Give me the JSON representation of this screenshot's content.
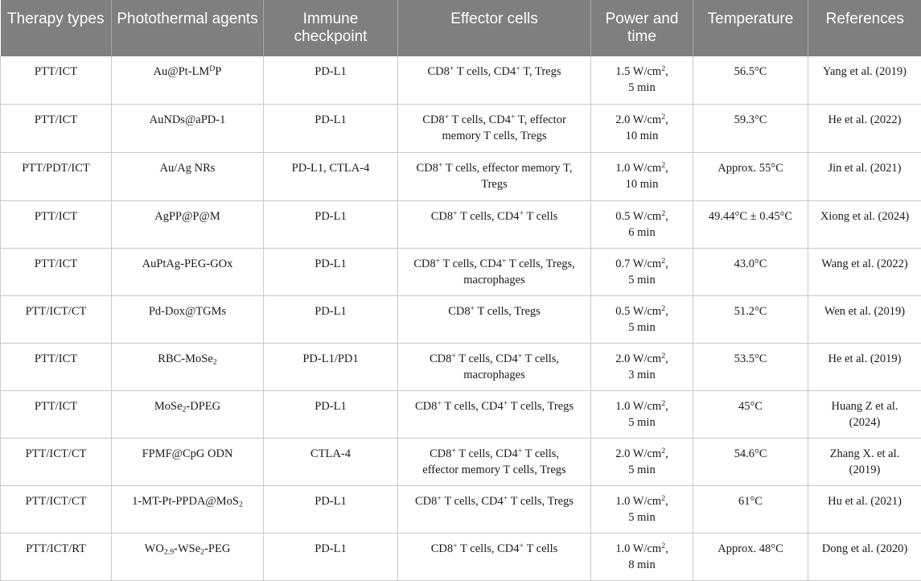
{
  "headers": [
    "Therapy types",
    "Photothermal agents",
    "Immune checkpoint",
    "Effector cells",
    "Power and time",
    "Temperature",
    "References"
  ],
  "rows": [
    [
      "PTT/ICT",
      "Au@Pt-LM<sup>D</sup>P",
      "PD-L1",
      "CD8<sup>+</sup> T cells, CD4<sup>+</sup> T, Tregs",
      "1.5 W/cm<sup>2</sup>,<br>5 min",
      "56.5°C",
      "Yang et al. (2019)"
    ],
    [
      "PTT/ICT",
      "AuNDs@aPD-1",
      "PD-L1",
      "CD8<sup>+</sup> T cells, CD4<sup>+</sup> T, effector<br>memory T cells, Tregs",
      "2.0 W/cm<sup>2</sup>,<br>10 min",
      "59.3°C",
      "He et al. (2022)"
    ],
    [
      "PTT/PDT/ICT",
      "Au/Ag NRs",
      "PD-L1, CTLA-4",
      "CD8<sup>+</sup> T cells, effector memory T,<br>Tregs",
      "1.0 W/cm<sup>2</sup>,<br>10 min",
      "Approx. 55°C",
      "Jin et al. (2021)"
    ],
    [
      "PTT/ICT",
      "AgPP@P@M",
      "PD-L1",
      "CD8<sup>+</sup> T cells, CD4<sup>+</sup> T cells",
      "0.5 W/cm<sup>2</sup>,<br>6 min",
      "49.44°C ± 0.45°C",
      "Xiong et al. (2024)"
    ],
    [
      "PTT/ICT",
      "AuPtAg-PEG-GOx",
      "PD-L1",
      "CD8<sup>+</sup> T cells, CD4<sup>+</sup> T cells, Tregs,<br>macrophages",
      "0.7 W/cm<sup>2</sup>,<br>5 min",
      "43.0°C",
      "Wang et al. (2022)"
    ],
    [
      "PTT/ICT/CT",
      "Pd-Dox@TGMs",
      "PD-L1",
      "CD8<sup>+</sup> T cells, Tregs",
      "0.5 W/cm<sup>2</sup>,<br>5 min",
      "51.2°C",
      "Wen et al. (2019)"
    ],
    [
      "PTT/ICT",
      "RBC-MoSe<sub>2</sub>",
      "PD-L1/PD1",
      "CD8<sup>+</sup> T cells, CD4<sup>+</sup> T cells,<br>macrophages",
      "2.0 W/cm<sup>2</sup>,<br>3 min",
      "53.5°C",
      "He et al. (2019)"
    ],
    [
      "PTT/ICT",
      "MoSe<sub>2</sub>-DPEG",
      "PD-L1",
      "CD8<sup>+</sup> T cells, CD4<sup>+</sup> T cells, Tregs",
      "1.0 W/cm<sup>2</sup>,<br>5 min",
      "45°C",
      "Huang Z et al.<br>(2024)"
    ],
    [
      "PTT/ICT/CT",
      "FPMF@CpG ODN",
      "CTLA-4",
      "CD8<sup>+</sup> T cells, CD4<sup>+</sup> T cells,<br>effector memory T cells, Tregs",
      "2.0 W/cm<sup>2</sup>,<br>5 min",
      "54.6°C",
      "Zhang X. et al.<br>(2019)"
    ],
    [
      "PTT/ICT/CT",
      "1-MT-Pt-PPDA@MoS<sub>2</sub>",
      "PD-L1",
      "CD8<sup>+</sup> T cells, CD4<sup>+</sup> T cells, Tregs",
      "1.0 W/cm<sup>2</sup>,<br>5 min",
      "61°C",
      "Hu et al. (2021)"
    ],
    [
      "PTT/ICT/RT",
      "WO<sub>2.9</sub>-WSe<sub>2</sub>-PEG",
      "PD-L1",
      "CD8<sup>+</sup> T cells, CD4<sup>+</sup> T cells",
      "1.0 W/cm<sup>2</sup>,<br>8 min",
      "Approx. 48°C",
      "Dong et al. (2020)"
    ]
  ]
}
